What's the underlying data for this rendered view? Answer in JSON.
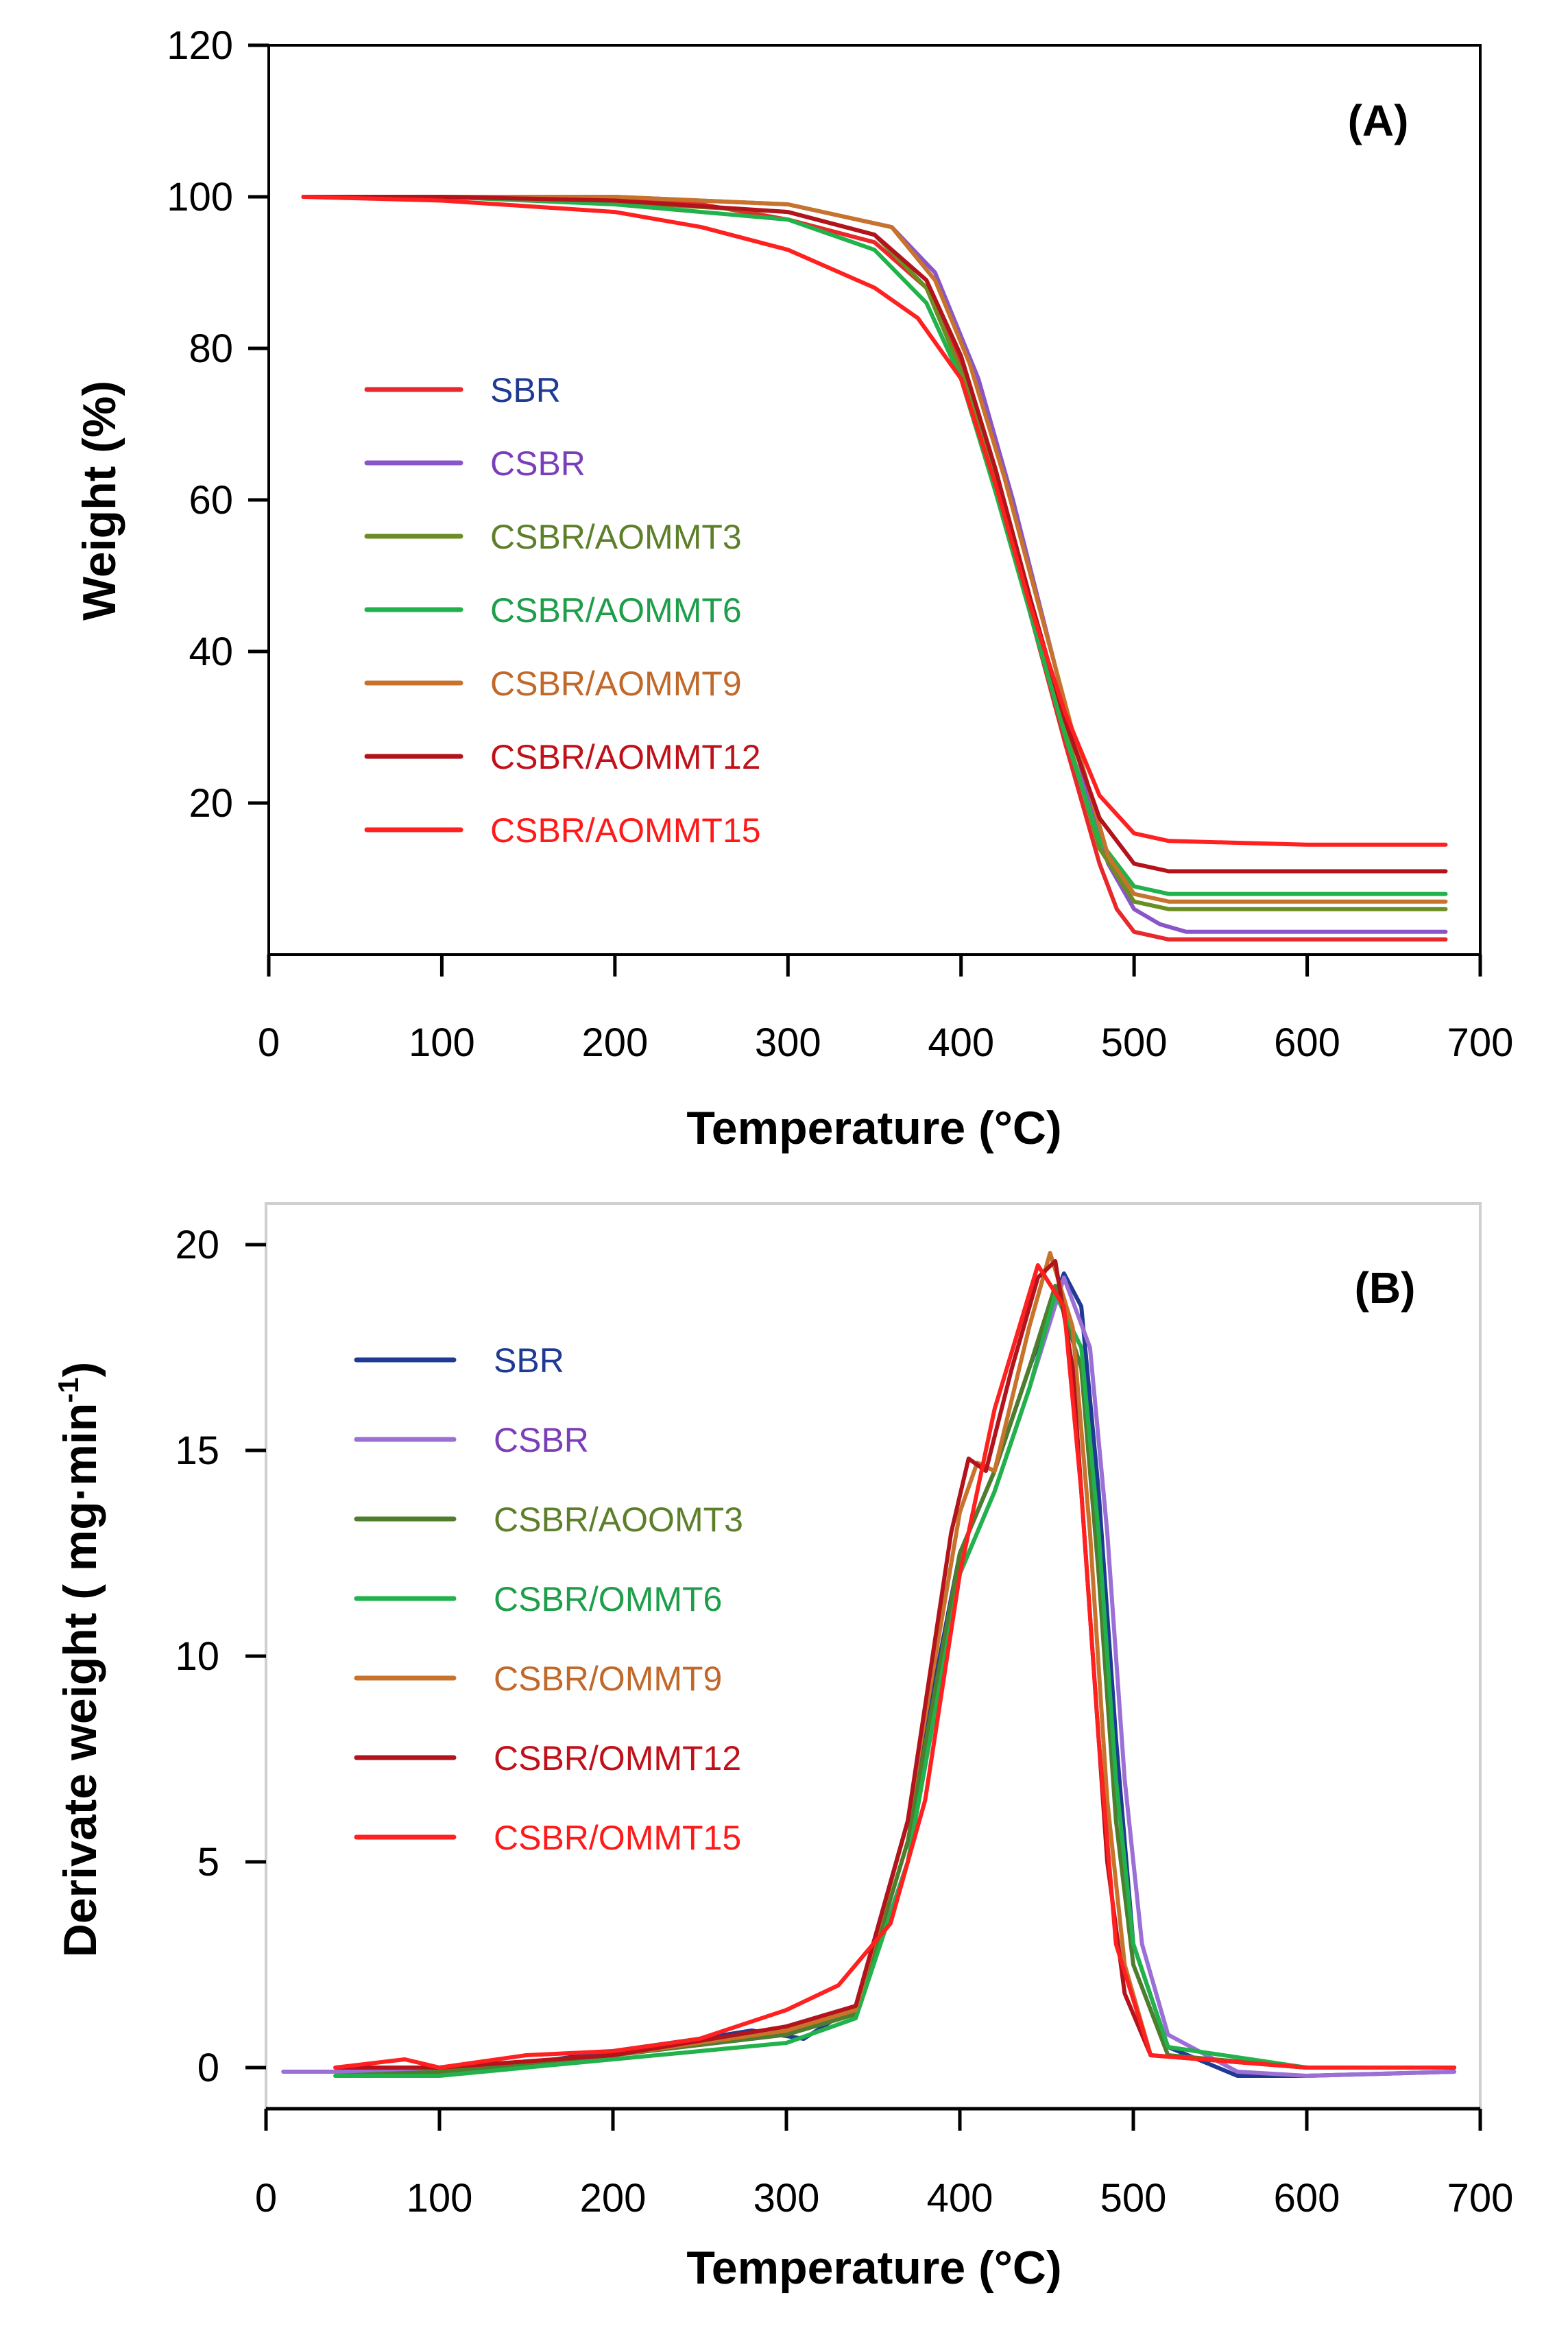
{
  "chart_data": [
    {
      "type": "line",
      "panel_label": "(A)",
      "xlabel": "Temperature (°C)",
      "ylabel": "Weight (%)",
      "xlim": [
        0,
        700
      ],
      "ylim": [
        0,
        120
      ],
      "xticks": [
        0,
        100,
        200,
        300,
        400,
        500,
        600,
        700
      ],
      "yticks": [
        20,
        40,
        60,
        80,
        100,
        120
      ],
      "grid": false,
      "legend_position": "left-middle",
      "series": [
        {
          "name": "SBR",
          "color": "#e8282b",
          "label_color": "#1f3a93",
          "x": [
            20,
            100,
            200,
            250,
            300,
            350,
            380,
            400,
            420,
            440,
            460,
            480,
            490,
            500,
            520,
            600,
            680
          ],
          "y": [
            100,
            100,
            99.5,
            99,
            97,
            94,
            88,
            78,
            62,
            45,
            28,
            12,
            6,
            3,
            2,
            2,
            2
          ]
        },
        {
          "name": "CSBR",
          "color": "#8a55c8",
          "label_color": "#7a3fb8",
          "x": [
            20,
            100,
            200,
            300,
            360,
            385,
            410,
            430,
            450,
            470,
            485,
            500,
            515,
            530,
            600,
            680
          ],
          "y": [
            100,
            100,
            100,
            99,
            96,
            90,
            76,
            60,
            42,
            24,
            12,
            6,
            4,
            3,
            3,
            3
          ]
        },
        {
          "name": "CSBR/AOMMT3",
          "color": "#6b8e23",
          "label_color": "#5e7f2a",
          "x": [
            20,
            100,
            200,
            300,
            350,
            380,
            400,
            420,
            440,
            460,
            480,
            500,
            520,
            600,
            680
          ],
          "y": [
            100,
            100,
            99.3,
            98,
            95,
            88,
            77,
            63,
            46,
            30,
            14,
            7,
            6,
            6,
            6
          ]
        },
        {
          "name": "CSBR/AOMMT6",
          "color": "#22b24c",
          "label_color": "#1e9e4a",
          "x": [
            20,
            100,
            200,
            300,
            350,
            380,
            400,
            420,
            440,
            460,
            480,
            500,
            520,
            600,
            680
          ],
          "y": [
            100,
            100,
            99,
            97,
            93,
            86,
            76,
            61,
            45,
            29,
            15,
            9,
            8,
            8,
            8
          ]
        },
        {
          "name": "CSBR/AOMMT9",
          "color": "#c8732c",
          "label_color": "#c0692a",
          "x": [
            20,
            100,
            200,
            300,
            360,
            385,
            405,
            425,
            445,
            465,
            485,
            500,
            520,
            600,
            680
          ],
          "y": [
            100,
            100,
            100,
            99,
            96,
            89,
            78,
            63,
            46,
            29,
            13,
            8,
            7,
            7,
            7
          ]
        },
        {
          "name": "CSBR/AOMMT12",
          "color": "#b3131b",
          "label_color": "#c0111a",
          "x": [
            20,
            100,
            200,
            300,
            350,
            380,
            400,
            420,
            440,
            460,
            480,
            500,
            520,
            600,
            680
          ],
          "y": [
            100,
            100,
            99.5,
            98,
            95,
            89,
            79,
            64,
            47,
            31,
            18,
            12,
            11,
            11,
            11
          ]
        },
        {
          "name": "CSBR/AOMMT15",
          "color": "#ff2020",
          "label_color": "#ff1a1a",
          "x": [
            20,
            100,
            200,
            250,
            300,
            350,
            375,
            400,
            420,
            440,
            460,
            480,
            500,
            520,
            600,
            680
          ],
          "y": [
            100,
            99.5,
            98,
            96,
            93,
            88,
            84,
            76,
            62,
            46,
            32,
            21,
            16,
            15,
            14.5,
            14.5
          ]
        }
      ]
    },
    {
      "type": "line",
      "panel_label": "(B)",
      "xlabel": "Temperature (°C)",
      "ylabel": "Derivate  weight ( mg·min",
      "ylabel_superscript": "-1",
      "ylabel_suffix": ")",
      "xlim": [
        0,
        700
      ],
      "ylim": [
        -1,
        21
      ],
      "xticks": [
        0,
        100,
        200,
        300,
        400,
        500,
        600,
        700
      ],
      "yticks": [
        0,
        5,
        10,
        15,
        20
      ],
      "grid": false,
      "legend_position": "left-middle",
      "series": [
        {
          "name": "SBR",
          "color": "#1f3a93",
          "label_color": "#1f3a93",
          "x": [
            10,
            100,
            150,
            200,
            250,
            280,
            310,
            340,
            370,
            400,
            420,
            440,
            460,
            470,
            480,
            490,
            500,
            520,
            560,
            600,
            685
          ],
          "y": [
            -0.1,
            -0.1,
            0.1,
            0.4,
            0.7,
            0.9,
            0.7,
            1.5,
            6,
            12.5,
            14.5,
            17,
            19.3,
            18.5,
            14,
            8,
            3,
            0.5,
            -0.2,
            -0.2,
            -0.1
          ]
        },
        {
          "name": "CSBR",
          "color": "#9b6fd6",
          "label_color": "#7a3fb8",
          "x": [
            10,
            100,
            200,
            300,
            340,
            370,
            400,
            420,
            440,
            460,
            475,
            485,
            495,
            505,
            520,
            560,
            600,
            685
          ],
          "y": [
            -0.1,
            -0.1,
            0.3,
            0.8,
            1.3,
            5,
            12,
            14,
            16.5,
            19.2,
            17.5,
            13,
            7,
            3,
            0.8,
            -0.1,
            -0.2,
            -0.1
          ]
        },
        {
          "name": "CSBR/AOOMT3",
          "color": "#4e7d2e",
          "label_color": "#5e7f2a",
          "x": [
            40,
            100,
            200,
            300,
            340,
            370,
            400,
            420,
            440,
            455,
            470,
            480,
            490,
            500,
            520,
            600,
            685
          ],
          "y": [
            -0.2,
            -0.1,
            0.3,
            0.8,
            1.3,
            5.5,
            12.5,
            14.5,
            17,
            19,
            17,
            12,
            6,
            2.5,
            0.3,
            0,
            0
          ]
        },
        {
          "name": "CSBR/OMMT6",
          "color": "#22b24c",
          "label_color": "#1e9e4a",
          "x": [
            40,
            100,
            200,
            300,
            340,
            370,
            400,
            420,
            440,
            455,
            470,
            480,
            490,
            500,
            520,
            600,
            685
          ],
          "y": [
            -0.2,
            -0.2,
            0.2,
            0.6,
            1.2,
            5,
            12,
            14,
            16.5,
            18.8,
            17.5,
            13,
            7,
            3,
            0.5,
            0,
            0
          ]
        },
        {
          "name": "CSBR/OMMT9",
          "color": "#c8732c",
          "label_color": "#c0692a",
          "x": [
            40,
            100,
            200,
            300,
            340,
            370,
            400,
            410,
            420,
            440,
            452,
            465,
            475,
            485,
            495,
            510,
            600,
            685
          ],
          "y": [
            0,
            0,
            0.3,
            0.9,
            1.4,
            6,
            13.5,
            14.7,
            14.5,
            18,
            19.8,
            18,
            13,
            6.5,
            2.5,
            0.3,
            0,
            0
          ]
        },
        {
          "name": "CSBR/OMMT12",
          "color": "#b3131b",
          "label_color": "#c0111a",
          "x": [
            40,
            100,
            200,
            300,
            340,
            370,
            395,
            405,
            415,
            430,
            445,
            455,
            465,
            475,
            485,
            495,
            510,
            600,
            685
          ],
          "y": [
            0,
            0,
            0.3,
            1,
            1.5,
            6,
            13,
            14.8,
            14.5,
            17,
            19.2,
            19.6,
            17,
            11,
            5,
            1.8,
            0.3,
            0,
            0
          ]
        },
        {
          "name": "CSBR/OMMT15",
          "color": "#ff2020",
          "label_color": "#ff1a1a",
          "x": [
            40,
            80,
            100,
            150,
            200,
            250,
            300,
            330,
            360,
            380,
            400,
            420,
            445,
            460,
            470,
            480,
            490,
            510,
            600,
            685
          ],
          "y": [
            0,
            0.2,
            0,
            0.3,
            0.4,
            0.7,
            1.4,
            2,
            3.5,
            6.5,
            12,
            16,
            19.5,
            18.5,
            14,
            8,
            3,
            0.3,
            0,
            0
          ]
        }
      ]
    }
  ]
}
